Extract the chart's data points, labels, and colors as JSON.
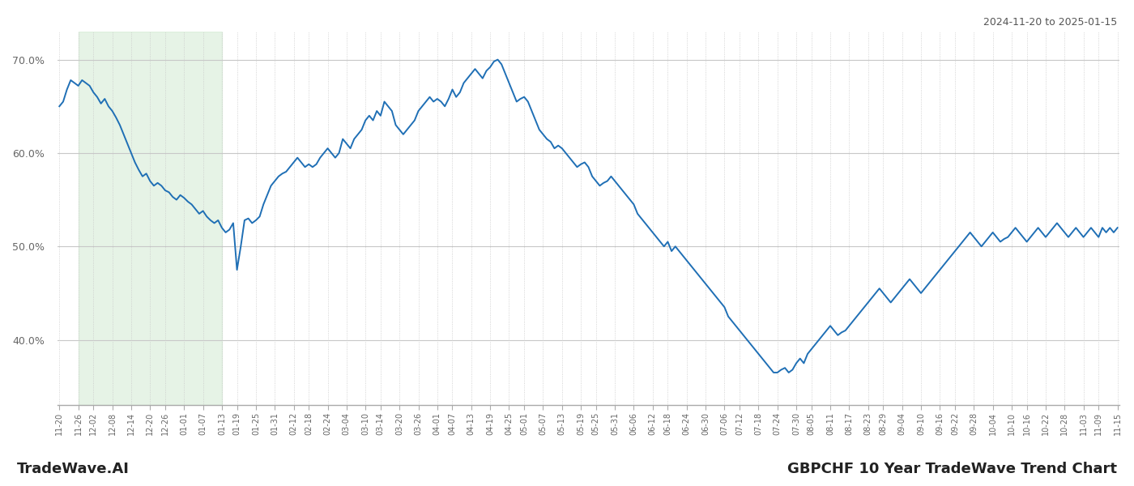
{
  "title_top_right": "2024-11-20 to 2025-01-15",
  "title_bottom_left": "TradeWave.AI",
  "title_bottom_right": "GBPCHF 10 Year TradeWave Trend Chart",
  "line_color": "#1f6fb5",
  "line_width": 1.4,
  "bg_color": "#ffffff",
  "grid_color": "#c8c8c8",
  "highlight_color": "#c8e6c9",
  "highlight_alpha": 0.45,
  "ylim": [
    33.0,
    73.0
  ],
  "yticks": [
    40.0,
    50.0,
    60.0,
    70.0
  ],
  "x_labels": [
    "11-20",
    "11-26",
    "12-02",
    "12-08",
    "12-14",
    "12-20",
    "12-26",
    "01-01",
    "01-07",
    "01-13",
    "01-19",
    "01-25",
    "01-31",
    "02-12",
    "02-18",
    "02-24",
    "03-04",
    "03-10",
    "03-14",
    "03-20",
    "03-26",
    "04-01",
    "04-07",
    "04-13",
    "04-19",
    "04-25",
    "05-01",
    "05-07",
    "05-13",
    "05-19",
    "05-25",
    "05-31",
    "06-06",
    "06-12",
    "06-18",
    "06-24",
    "06-30",
    "07-06",
    "07-12",
    "07-18",
    "07-24",
    "07-30",
    "08-05",
    "08-11",
    "08-17",
    "08-23",
    "08-29",
    "09-04",
    "09-10",
    "09-16",
    "09-22",
    "09-28",
    "10-04",
    "10-10",
    "10-16",
    "10-22",
    "10-28",
    "11-03",
    "11-09",
    "11-15"
  ],
  "highlight_x_start_label": "11-26",
  "highlight_x_end_label": "01-13",
  "y_values": [
    65.0,
    65.5,
    66.8,
    67.8,
    67.5,
    67.2,
    67.8,
    67.5,
    67.2,
    66.5,
    66.0,
    65.3,
    65.8,
    65.0,
    64.5,
    63.8,
    63.0,
    62.0,
    61.0,
    60.0,
    59.0,
    58.2,
    57.5,
    57.8,
    57.0,
    56.5,
    56.8,
    56.5,
    56.0,
    55.8,
    55.3,
    55.0,
    55.5,
    55.2,
    54.8,
    54.5,
    54.0,
    53.5,
    53.8,
    53.2,
    52.8,
    52.5,
    52.8,
    52.0,
    51.5,
    51.8,
    52.5,
    47.5,
    50.0,
    52.8,
    53.0,
    52.5,
    52.8,
    53.2,
    54.5,
    55.5,
    56.5,
    57.0,
    57.5,
    57.8,
    58.0,
    58.5,
    59.0,
    59.5,
    59.0,
    58.5,
    58.8,
    58.5,
    58.8,
    59.5,
    60.0,
    60.5,
    60.0,
    59.5,
    60.0,
    61.5,
    61.0,
    60.5,
    61.5,
    62.0,
    62.5,
    63.5,
    64.0,
    63.5,
    64.5,
    64.0,
    65.5,
    65.0,
    64.5,
    63.0,
    62.5,
    62.0,
    62.5,
    63.0,
    63.5,
    64.5,
    65.0,
    65.5,
    66.0,
    65.5,
    65.8,
    65.5,
    65.0,
    65.8,
    66.8,
    66.0,
    66.5,
    67.5,
    68.0,
    68.5,
    69.0,
    68.5,
    68.0,
    68.8,
    69.2,
    69.8,
    70.0,
    69.5,
    68.5,
    67.5,
    66.5,
    65.5,
    65.8,
    66.0,
    65.5,
    64.5,
    63.5,
    62.5,
    62.0,
    61.5,
    61.2,
    60.5,
    60.8,
    60.5,
    60.0,
    59.5,
    59.0,
    58.5,
    58.8,
    59.0,
    58.5,
    57.5,
    57.0,
    56.5,
    56.8,
    57.0,
    57.5,
    57.0,
    56.5,
    56.0,
    55.5,
    55.0,
    54.5,
    53.5,
    53.0,
    52.5,
    52.0,
    51.5,
    51.0,
    50.5,
    50.0,
    50.5,
    49.5,
    50.0,
    49.5,
    49.0,
    48.5,
    48.0,
    47.5,
    47.0,
    46.5,
    46.0,
    45.5,
    45.0,
    44.5,
    44.0,
    43.5,
    42.5,
    42.0,
    41.5,
    41.0,
    40.5,
    40.0,
    39.5,
    39.0,
    38.5,
    38.0,
    37.5,
    37.0,
    36.5,
    36.5,
    36.8,
    37.0,
    36.5,
    36.8,
    37.5,
    38.0,
    37.5,
    38.5,
    39.0,
    39.5,
    40.0,
    40.5,
    41.0,
    41.5,
    41.0,
    40.5,
    40.8,
    41.0,
    41.5,
    42.0,
    42.5,
    43.0,
    43.5,
    44.0,
    44.5,
    45.0,
    45.5,
    45.0,
    44.5,
    44.0,
    44.5,
    45.0,
    45.5,
    46.0,
    46.5,
    46.0,
    45.5,
    45.0,
    45.5,
    46.0,
    46.5,
    47.0,
    47.5,
    48.0,
    48.5,
    49.0,
    49.5,
    50.0,
    50.5,
    51.0,
    51.5,
    51.0,
    50.5,
    50.0,
    50.5,
    51.0,
    51.5,
    51.0,
    50.5,
    50.8,
    51.0,
    51.5,
    52.0,
    51.5,
    51.0,
    50.5,
    51.0,
    51.5,
    52.0,
    51.5,
    51.0,
    51.5,
    52.0,
    52.5,
    52.0,
    51.5,
    51.0,
    51.5,
    52.0,
    51.5,
    51.0,
    51.5,
    52.0,
    51.5,
    51.0,
    52.0,
    51.5,
    52.0,
    51.5,
    52.0
  ]
}
